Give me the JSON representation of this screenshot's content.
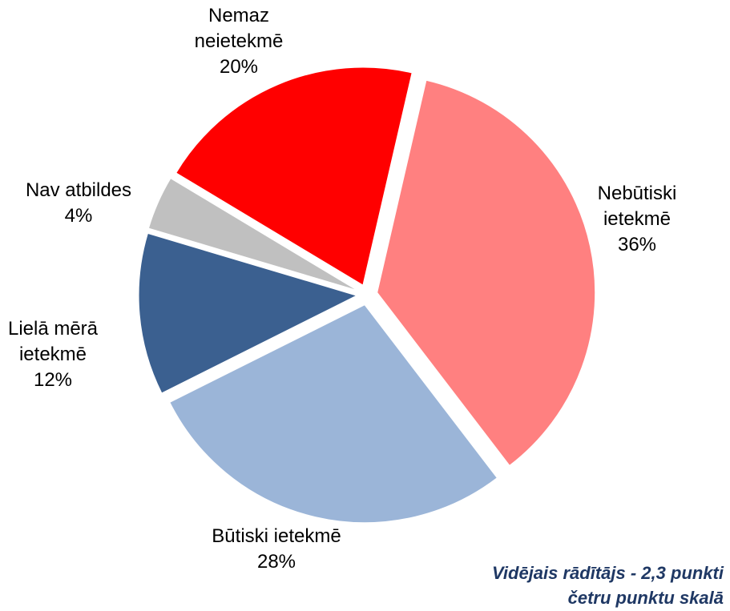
{
  "chart_data": {
    "type": "pie",
    "categories": [
      "Nebūtiski ietekmē",
      "Būtiski ietekmē",
      "Lielā mērā ietekmē",
      "Nav atbildes",
      "Nemaz neietekmē"
    ],
    "values": [
      36,
      28,
      12,
      4,
      20
    ],
    "value_labels": [
      "36%",
      "28%",
      "12%",
      "4%",
      "20%"
    ],
    "colors": [
      "#ff8080",
      "#9bb5d8",
      "#3b6090",
      "#c0c0c0",
      "#ff0000"
    ],
    "annotation": "Vidējais rādītājs - 2,3 punkti četru punktu skalā"
  }
}
